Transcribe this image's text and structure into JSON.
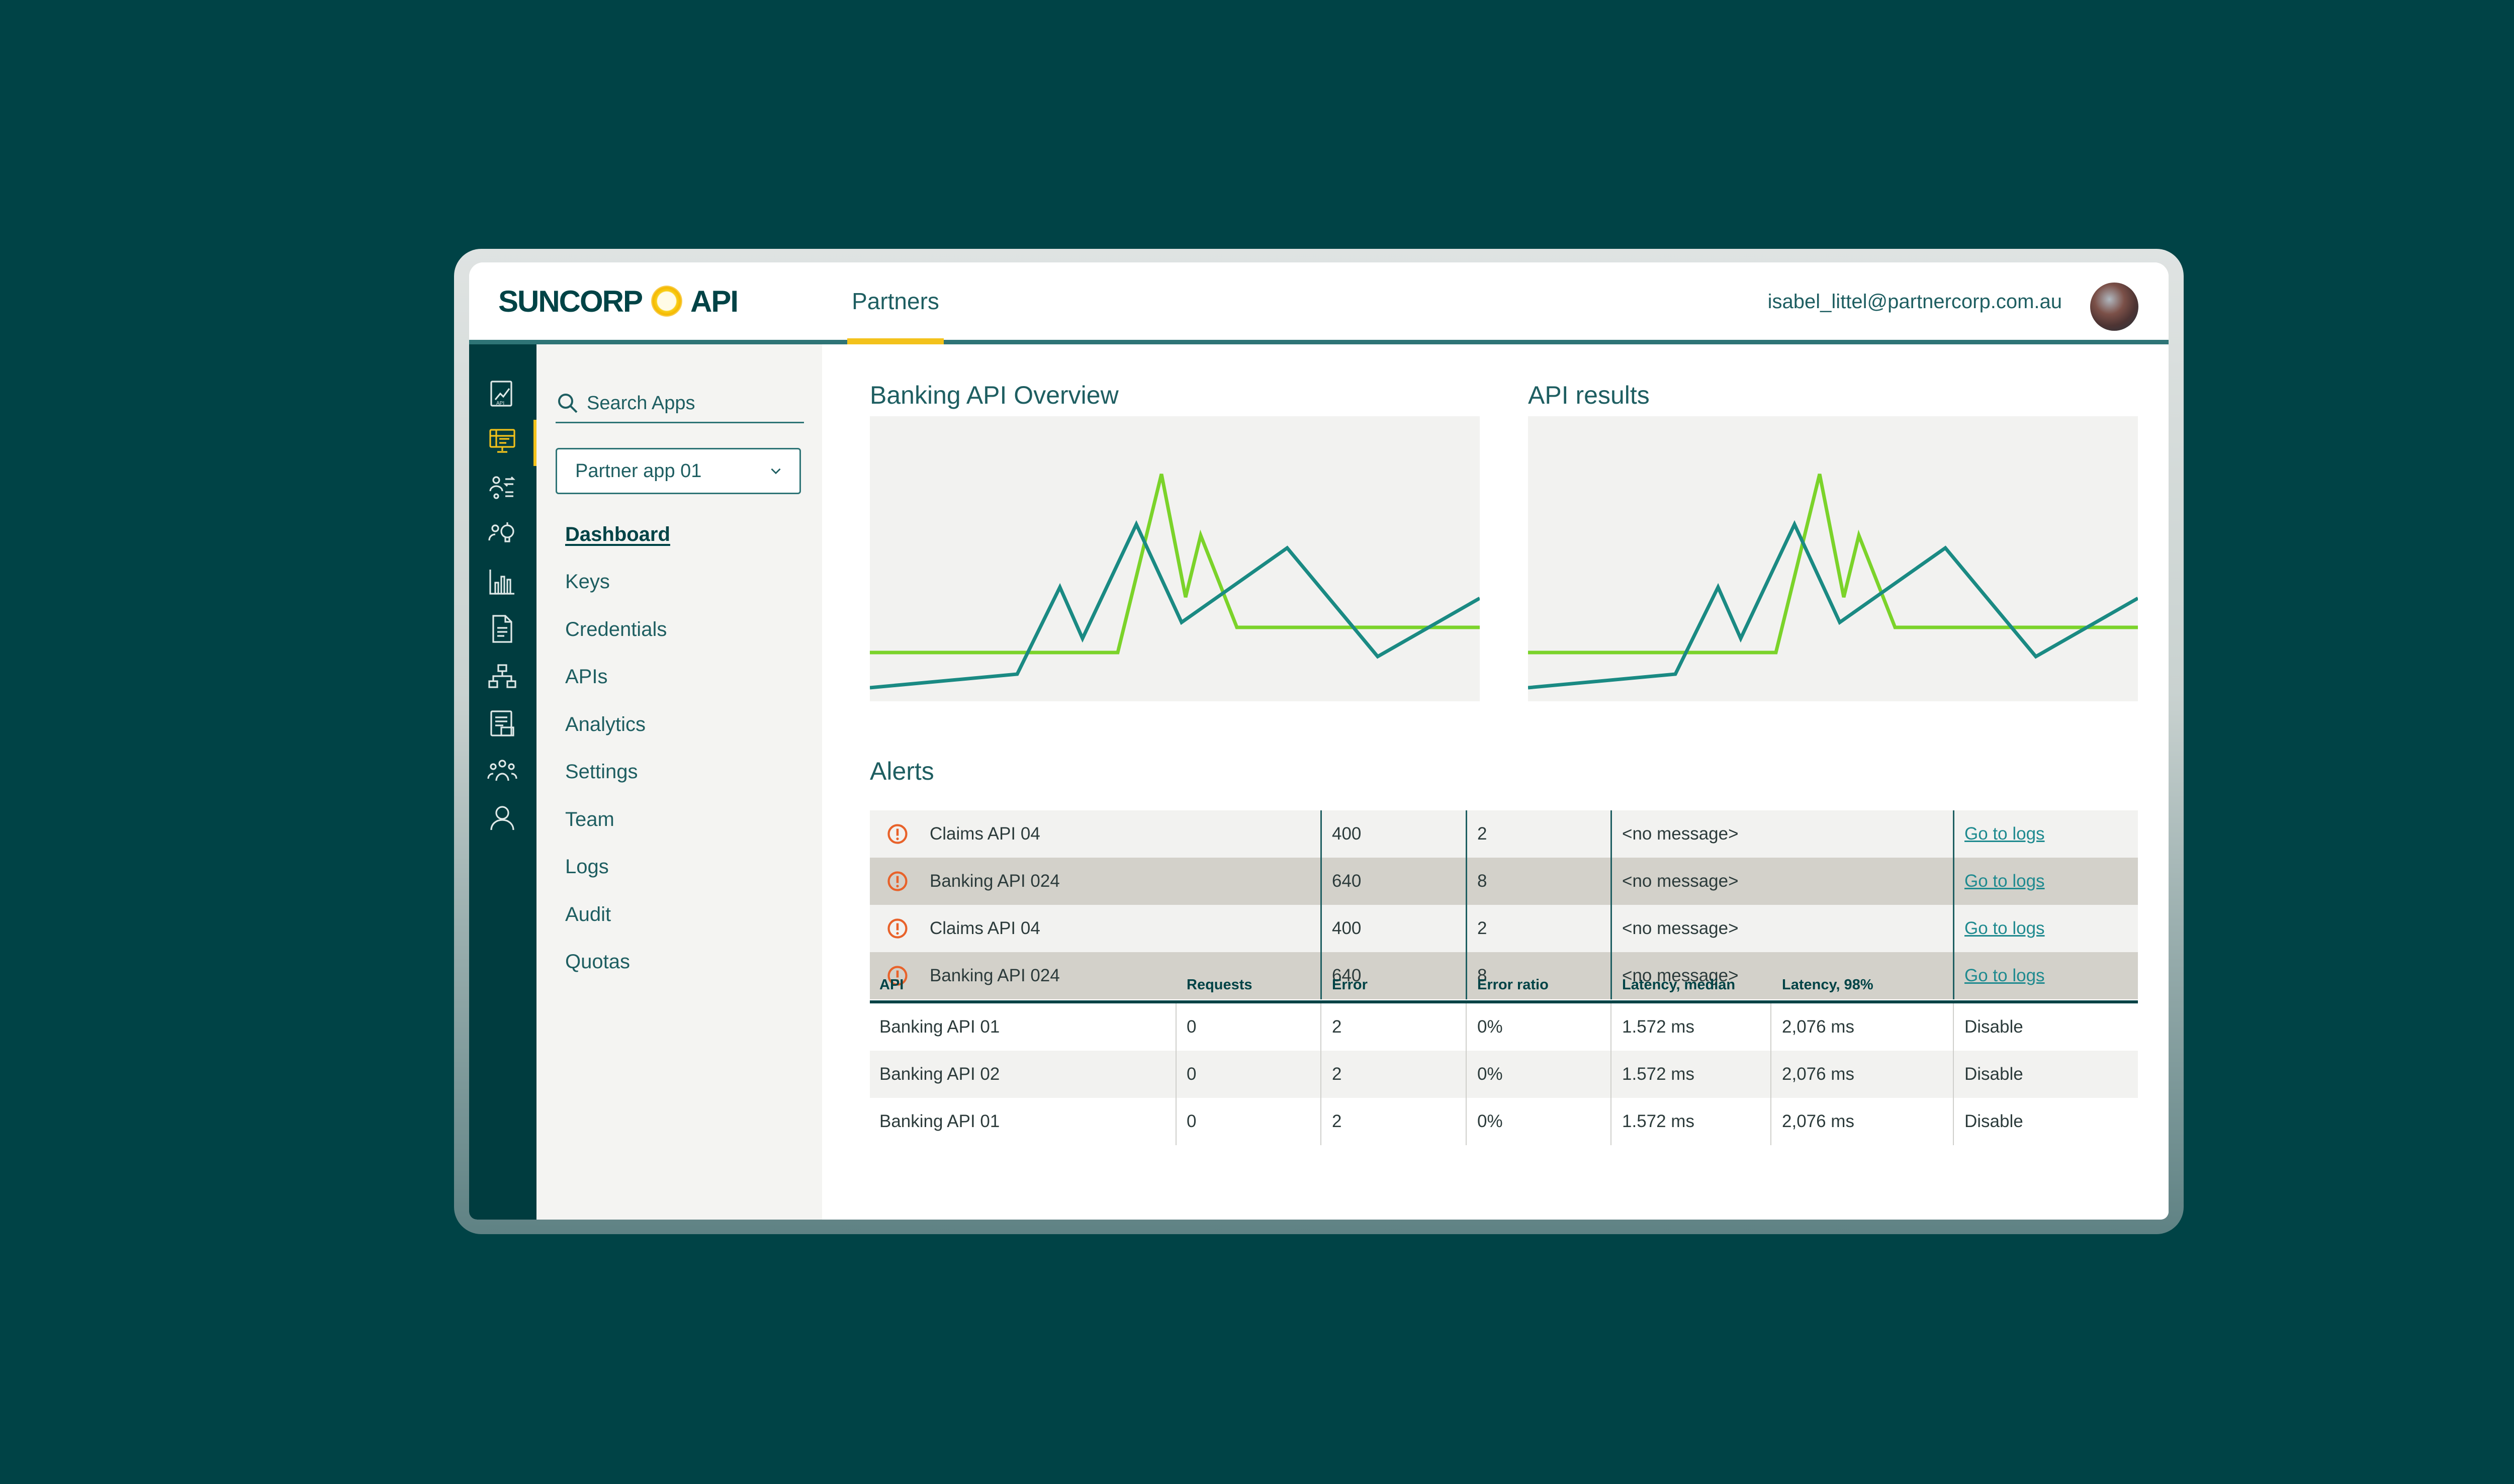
{
  "colors": {
    "background": "#004346",
    "brand_dark": "#004346",
    "accent_yellow": "#f3c21b",
    "series_teal": "#1a8a83",
    "series_lime": "#7bd32a",
    "alert_orange": "#e8622a",
    "link": "#1f8a8f"
  },
  "header": {
    "logo_left": "SUNCORP",
    "logo_right": "API",
    "tab": "Partners",
    "user_email": "isabel_littel@partnercorp.com.au"
  },
  "rail": {
    "icons": [
      "api-docs-icon",
      "partner-apps-icon",
      "users-sync-icon",
      "insights-icon",
      "analytics-bar-icon",
      "document-icon",
      "network-icon",
      "reports-icon",
      "team-icon",
      "profile-icon"
    ],
    "active_index": 1
  },
  "sidebar": {
    "search_placeholder": "Search Apps",
    "selected_app": "Partner app 01",
    "items": [
      {
        "label": "Dashboard",
        "active": true
      },
      {
        "label": "Keys"
      },
      {
        "label": "Credentials"
      },
      {
        "label": "APIs"
      },
      {
        "label": "Analytics"
      },
      {
        "label": "Settings"
      },
      {
        "label": "Team"
      },
      {
        "label": "Logs"
      },
      {
        "label": "Audit"
      },
      {
        "label": "Quotas"
      }
    ]
  },
  "overview": {
    "title": "Banking API Overview"
  },
  "results": {
    "title": "API results"
  },
  "alerts": {
    "title": "Alerts",
    "rows": [
      {
        "api": "Claims API 04",
        "code": "400",
        "count": "2",
        "message": "<no message>",
        "link": "Go to logs"
      },
      {
        "api": "Banking API 024",
        "code": "640",
        "count": "8",
        "message": "<no message>",
        "link": "Go to logs"
      },
      {
        "api": "Claims API 04",
        "code": "400",
        "count": "2",
        "message": "<no message>",
        "link": "Go to logs"
      },
      {
        "api": "Banking API 024",
        "code": "640",
        "count": "8",
        "message": "<no message>",
        "link": "Go to logs"
      }
    ]
  },
  "stats": {
    "columns": [
      "API",
      "Requests",
      "Error",
      "Error ratio",
      "Latency, median",
      "Latency, 98%"
    ],
    "rows": [
      {
        "api": "Banking API 01",
        "requests": "0",
        "error": "2",
        "ratio": "0%",
        "median": "1.572 ms",
        "p98": "2,076 ms",
        "action": "Disable"
      },
      {
        "api": "Banking API 02",
        "requests": "0",
        "error": "2",
        "ratio": "0%",
        "median": "1.572 ms",
        "p98": "2,076 ms",
        "action": "Disable"
      },
      {
        "api": "Banking API 01",
        "requests": "0",
        "error": "2",
        "ratio": "0%",
        "median": "1.572 ms",
        "p98": "2,076 ms",
        "action": "Disable"
      }
    ]
  }
}
